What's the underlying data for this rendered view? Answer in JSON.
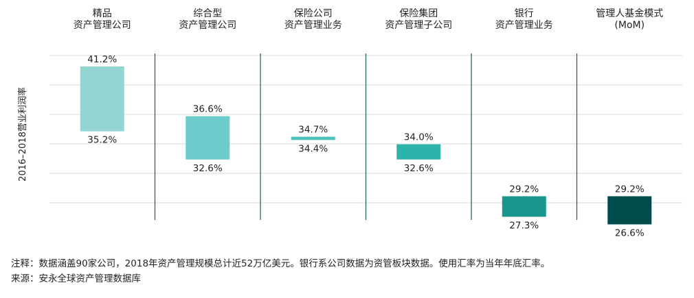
{
  "chart_data": {
    "type": "floating-bar",
    "ylabel": "2016–2018营业利润率",
    "categories": [
      {
        "label_lines": [
          "精品",
          "资产管理公司"
        ],
        "high": 41.2,
        "low": 35.2,
        "high_label": "41.2%",
        "low_label": "35.2%",
        "color": "#92d5d2"
      },
      {
        "label_lines": [
          "综合型",
          "资产管理公司"
        ],
        "high": 36.6,
        "low": 32.6,
        "high_label": "36.6%",
        "low_label": "32.6%",
        "color": "#6ccbcb"
      },
      {
        "label_lines": [
          "保险公司",
          "资产管理业务"
        ],
        "high": 34.7,
        "low": 34.4,
        "high_label": "34.7%",
        "low_label": "34.4%",
        "color": "#4ec0bd"
      },
      {
        "label_lines": [
          "保险集团",
          "资产管理子公司"
        ],
        "high": 34.0,
        "low": 32.6,
        "high_label": "34.0%",
        "low_label": "32.6%",
        "color": "#2db4aa"
      },
      {
        "label_lines": [
          "银行",
          "资产管理业务"
        ],
        "high": 29.2,
        "low": 27.3,
        "high_label": "29.2%",
        "low_label": "27.3%",
        "color": "#1b968e"
      },
      {
        "label_lines": [
          "管理人基金模式",
          "(MoM)"
        ],
        "high": 29.2,
        "low": 26.6,
        "high_label": "29.2%",
        "low_label": "26.6%",
        "color": "#004d4d"
      }
    ],
    "ylim": [
      26,
      42.4
    ],
    "grid": true,
    "colors": {
      "gridline": "#d8d8d8",
      "divider": "#1f5c4f"
    }
  },
  "notes": {
    "note": "注释：数据涵盖90家公司，2018年资产管理规模总计近52万亿美元。银行系公司数据为资管板块数据。使用汇率为当年年底汇率。",
    "source": "来源：安永全球资产管理数据库"
  }
}
